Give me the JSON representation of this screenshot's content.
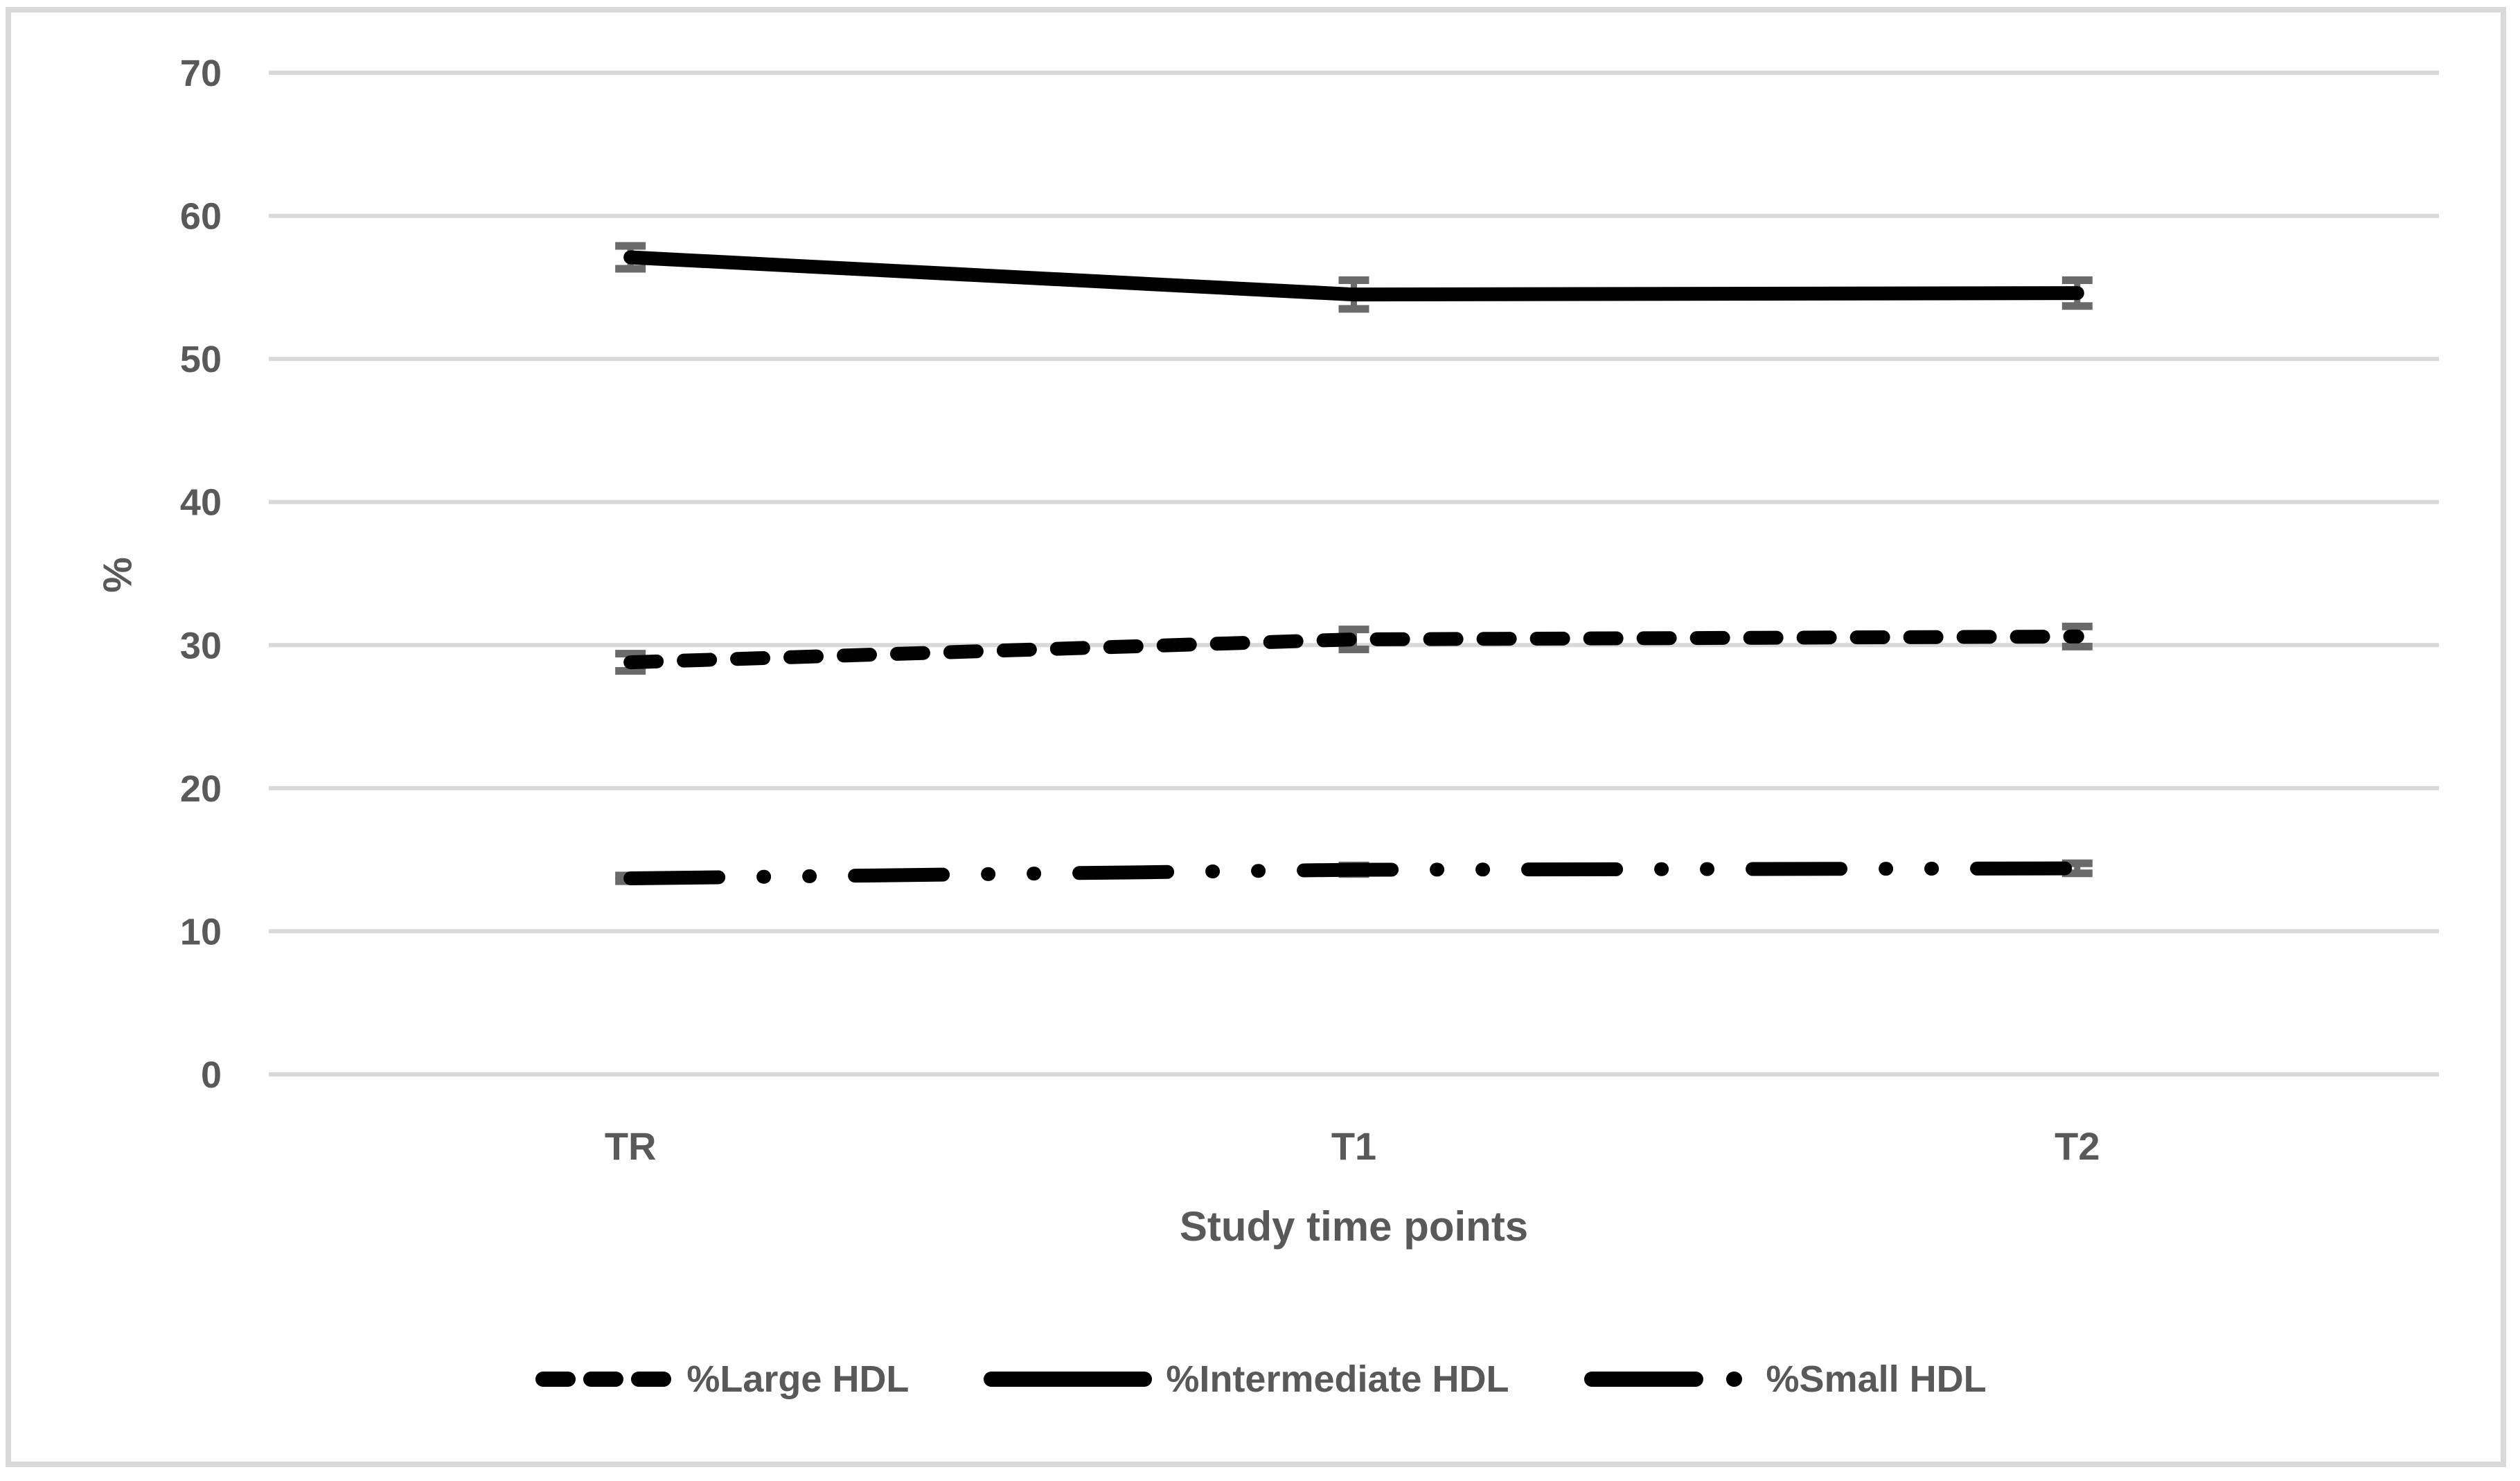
{
  "chart_data": {
    "type": "line",
    "title": "",
    "xlabel": "Study time points",
    "ylabel": "%",
    "categories": [
      "TR",
      "T1",
      "T2"
    ],
    "ylim": [
      0,
      70
    ],
    "yticks": [
      0,
      10,
      20,
      30,
      40,
      50,
      60,
      70
    ],
    "grid": "horizontal",
    "legend_position": "bottom",
    "line_color": "#000000",
    "gridline_color": "#d9d9d9",
    "axis_text_color": "#595959",
    "error_bar_color": "#6a6a6a",
    "series": [
      {
        "name": "%Large HDL",
        "style": "dashed",
        "values": [
          28.8,
          30.4,
          30.6
        ],
        "errors": [
          0.6,
          0.7,
          0.7
        ]
      },
      {
        "name": "%Intermediate HDL",
        "style": "solid",
        "values": [
          57.1,
          54.5,
          54.6
        ],
        "errors": [
          0.8,
          1.0,
          0.9
        ]
      },
      {
        "name": "%Small HDL",
        "style": "long-dash-dot-dot",
        "values": [
          13.7,
          14.3,
          14.4
        ],
        "errors": [
          0.2,
          0.3,
          0.35
        ]
      }
    ]
  }
}
